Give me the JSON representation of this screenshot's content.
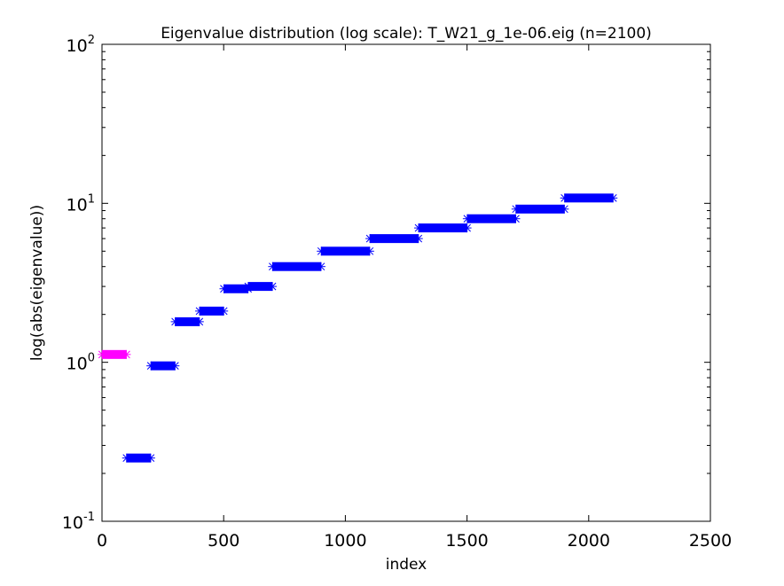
{
  "chart_data": {
    "type": "scatter",
    "title": "Eigenvalue distribution (log scale): T_W21_g_1e-06.eig (n=2100)",
    "xlabel": "index",
    "ylabel": "log(abs(eigenvalue))",
    "xlim": [
      0,
      2500
    ],
    "ylim": [
      0.1,
      100
    ],
    "yscale": "log",
    "xticks": [
      0,
      500,
      1000,
      1500,
      2000,
      2500
    ],
    "xtick_labels": [
      "0",
      "500",
      "1000",
      "1500",
      "2000",
      "2500"
    ],
    "yticks": [
      0.1,
      1,
      10,
      100
    ],
    "ytick_labels": [
      {
        "base": "10",
        "exp": "-1"
      },
      {
        "base": "10",
        "exp": "0"
      },
      {
        "base": "10",
        "exp": "1"
      },
      {
        "base": "10",
        "exp": "2"
      }
    ],
    "grid": false,
    "marker": "asterisk",
    "series": [
      {
        "color": "#ff00ff",
        "segments": [
          {
            "x_start": 1,
            "x_end": 100,
            "y": 1.12
          }
        ]
      },
      {
        "color": "#0000ff",
        "segments": [
          {
            "x_start": 101,
            "x_end": 200,
            "y": 0.25
          },
          {
            "x_start": 201,
            "x_end": 300,
            "y": 0.95
          },
          {
            "x_start": 301,
            "x_end": 400,
            "y": 1.8
          },
          {
            "x_start": 401,
            "x_end": 500,
            "y": 2.1
          },
          {
            "x_start": 501,
            "x_end": 600,
            "y": 2.9
          },
          {
            "x_start": 601,
            "x_end": 700,
            "y": 3.0
          },
          {
            "x_start": 701,
            "x_end": 900,
            "y": 4.0
          },
          {
            "x_start": 901,
            "x_end": 1100,
            "y": 5.0
          },
          {
            "x_start": 1101,
            "x_end": 1300,
            "y": 6.0
          },
          {
            "x_start": 1301,
            "x_end": 1500,
            "y": 7.0
          },
          {
            "x_start": 1501,
            "x_end": 1700,
            "y": 8.0
          },
          {
            "x_start": 1701,
            "x_end": 1900,
            "y": 9.2
          },
          {
            "x_start": 1901,
            "x_end": 2100,
            "y": 10.8
          }
        ]
      }
    ]
  }
}
